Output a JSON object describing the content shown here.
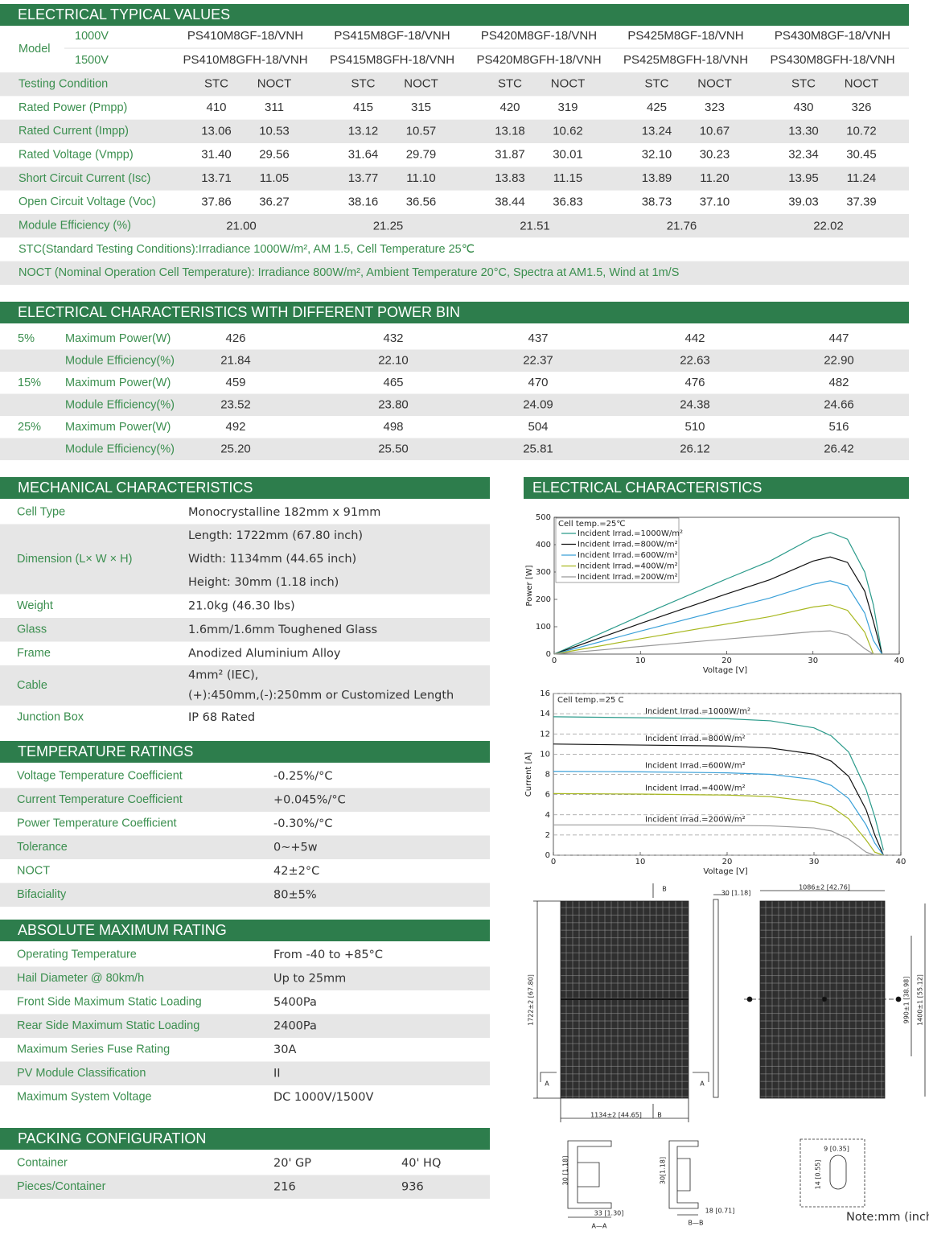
{
  "electrical_typical": {
    "title": "ELECTRICAL TYPICAL VALUES",
    "model_label": "Model",
    "voltages": [
      "1000V",
      "1500V"
    ],
    "models": [
      [
        "PS410M8GF-18/VNH",
        "PS415M8GF-18/VNH",
        "PS420M8GF-18/VNH",
        "PS425M8GF-18/VNH",
        "PS430M8GF-18/VNH"
      ],
      [
        "PS410M8GFH-18/VNH",
        "PS415M8GFH-18/VNH",
        "PS420M8GFH-18/VNH",
        "PS425M8GFH-18/VNH",
        "PS430M8GFH-18/VNH"
      ]
    ],
    "rows": [
      {
        "label": "Testing Condition",
        "values": [
          "STC",
          "NOCT",
          "STC",
          "NOCT",
          "STC",
          "NOCT",
          "STC",
          "NOCT",
          "STC",
          "NOCT"
        ]
      },
      {
        "label": "Rated Power (Pmpp)",
        "values": [
          "410",
          "311",
          "415",
          "315",
          "420",
          "319",
          "425",
          "323",
          "430",
          "326"
        ]
      },
      {
        "label": "Rated Current (Impp)",
        "values": [
          "13.06",
          "10.53",
          "13.12",
          "10.57",
          "13.18",
          "10.62",
          "13.24",
          "10.67",
          "13.30",
          "10.72"
        ]
      },
      {
        "label": "Rated Voltage (Vmpp)",
        "values": [
          "31.40",
          "29.56",
          "31.64",
          "29.79",
          "31.87",
          "30.01",
          "32.10",
          "30.23",
          "32.34",
          "30.45"
        ]
      },
      {
        "label": "Short Circuit Current (Isc)",
        "values": [
          "13.71",
          "11.05",
          "13.77",
          "11.10",
          "13.83",
          "11.15",
          "13.89",
          "11.20",
          "13.95",
          "11.24"
        ]
      },
      {
        "label": "Open Circuit Voltage (Voc)",
        "values": [
          "37.86",
          "36.27",
          "38.16",
          "36.56",
          "38.44",
          "36.83",
          "38.73",
          "37.10",
          "39.03",
          "37.39"
        ]
      }
    ],
    "efficiency": {
      "label": "Module Efficiency (%)",
      "values": [
        "21.00",
        "21.25",
        "21.51",
        "21.76",
        "22.02"
      ]
    },
    "notes": [
      "STC(Standard Testing Conditions):Irradiance 1000W/m², AM 1.5, Cell Temperature 25℃",
      "NOCT (Nominal Operation Cell Temperature): Irradiance 800W/m², Ambient Temperature 20°C, Spectra at AM1.5, Wind at 1m/S"
    ]
  },
  "power_bin": {
    "title": "ELECTRICAL CHARACTERISTICS WITH DIFFERENT POWER BIN",
    "groups": [
      {
        "bin": "5%",
        "rows": [
          {
            "label": "Maximum Power(W)",
            "values": [
              "426",
              "432",
              "437",
              "442",
              "447"
            ]
          },
          {
            "label": "Module Efficiency(%)",
            "values": [
              "21.84",
              "22.10",
              "22.37",
              "22.63",
              "22.90"
            ]
          }
        ]
      },
      {
        "bin": "15%",
        "rows": [
          {
            "label": "Maximum Power(W)",
            "values": [
              "459",
              "465",
              "470",
              "476",
              "482"
            ]
          },
          {
            "label": "Module Efficiency(%)",
            "values": [
              "23.52",
              "23.80",
              "24.09",
              "24.38",
              "24.66"
            ]
          }
        ]
      },
      {
        "bin": "25%",
        "rows": [
          {
            "label": "Maximum Power(W)",
            "values": [
              "492",
              "498",
              "504",
              "510",
              "516"
            ]
          },
          {
            "label": "Module Efficiency(%)",
            "values": [
              "25.20",
              "25.50",
              "25.81",
              "26.12",
              "26.42"
            ]
          }
        ]
      }
    ]
  },
  "mechanical": {
    "title": "MECHANICAL CHARACTERISTICS",
    "rows": [
      {
        "label": "Cell Type",
        "value": "Monocrystalline 182mm x 91mm"
      },
      {
        "label": "Dimension (L× W × H)",
        "value": [
          "Length: 1722mm (67.80 inch)",
          "Width: 1134mm (44.65 inch)",
          "Height: 30mm (1.18 inch)"
        ]
      },
      {
        "label": "Weight",
        "value": "21.0kg (46.30 lbs)"
      },
      {
        "label": "Glass",
        "value": "1.6mm/1.6mm Toughened Glass"
      },
      {
        "label": "Frame",
        "value": "Anodized Aluminium Alloy"
      },
      {
        "label": "Cable",
        "value": [
          "4mm² (IEC),",
          "(+):450mm,(-):250mm or Customized Length"
        ]
      },
      {
        "label": "Junction Box",
        "value": "IP 68 Rated"
      }
    ]
  },
  "temperature": {
    "title": "TEMPERATURE RATINGS",
    "rows": [
      {
        "label": "Voltage Temperature Coefficient",
        "value": "-0.25%/°C"
      },
      {
        "label": "Current Temperature Coefficient",
        "value": "+0.045%/°C"
      },
      {
        "label": "Power Temperature Coefficient",
        "value": "-0.30%/°C"
      },
      {
        "label": "Tolerance",
        "value": "0~+5w"
      },
      {
        "label": "NOCT",
        "value": "42±2°C"
      },
      {
        "label": "Bifaciality",
        "value": "80±5%"
      }
    ]
  },
  "absolute_max": {
    "title": "ABSOLUTE MAXIMUM RATING",
    "rows": [
      {
        "label": "Operating Temperature",
        "value": "From -40 to +85°C"
      },
      {
        "label": "Hail Diameter @ 80km/h",
        "value": "Up to 25mm"
      },
      {
        "label": "Front Side Maximum Static Loading",
        "value": "5400Pa"
      },
      {
        "label": "Rear Side Maximum Static Loading",
        "value": "2400Pa"
      },
      {
        "label": "Maximum Series Fuse Rating",
        "value": "30A"
      },
      {
        "label": "PV Module Classification",
        "value": "II"
      },
      {
        "label": "Maximum System Voltage",
        "value": "DC 1000V/1500V"
      }
    ]
  },
  "packing": {
    "title": "PACKING CONFIGURATION",
    "rows": [
      {
        "label": "Container",
        "values": [
          "20' GP",
          "40' HQ"
        ]
      },
      {
        "label": "Pieces/Container",
        "values": [
          "216",
          "936"
        ]
      }
    ]
  },
  "characteristics_title": "ELECTRICAL CHARACTERISTICS",
  "chart_data": [
    {
      "type": "line",
      "xlabel": "Voltage [V]",
      "ylabel": "Power [W]",
      "annotation": "Cell temp.=25℃",
      "x": [
        0,
        10,
        20,
        25,
        30,
        32,
        34,
        36,
        37,
        38
      ],
      "xlim": [
        0,
        40
      ],
      "xticks": [
        0,
        10,
        20,
        30,
        40
      ],
      "ylim": [
        0,
        500
      ],
      "yticks": [
        0,
        100,
        200,
        300,
        400,
        500
      ],
      "grid": false,
      "legend": "upper left",
      "series": [
        {
          "name": "Incident Irrad.=1000W/m²",
          "color": "#2a9a8a",
          "values": [
            0,
            140,
            275,
            340,
            425,
            445,
            420,
            300,
            180,
            0
          ]
        },
        {
          "name": "Incident Irrad.=800W/m²",
          "color": "#111111",
          "values": [
            0,
            112,
            220,
            272,
            340,
            355,
            335,
            230,
            120,
            0
          ]
        },
        {
          "name": "Incident Irrad.=600W/m²",
          "color": "#3aa0d8",
          "values": [
            0,
            84,
            165,
            205,
            255,
            268,
            250,
            150,
            50,
            0
          ]
        },
        {
          "name": "Incident Irrad.=400W/m²",
          "color": "#a8b820",
          "values": [
            0,
            56,
            110,
            137,
            172,
            180,
            160,
            80,
            0,
            0
          ]
        },
        {
          "name": "Incident Irrad.=200W/m²",
          "color": "#999999",
          "values": [
            0,
            28,
            55,
            68,
            82,
            85,
            70,
            20,
            0,
            0
          ]
        }
      ]
    },
    {
      "type": "line",
      "xlabel": "Voltage [V]",
      "ylabel": "Current [A]",
      "annotation": "Cell temp.=25 C",
      "x": [
        0,
        10,
        20,
        25,
        30,
        32,
        34,
        36,
        37,
        38
      ],
      "xlim": [
        0,
        40
      ],
      "xticks": [
        0,
        10,
        20,
        30,
        40
      ],
      "ylim": [
        0,
        16
      ],
      "yticks": [
        0,
        2,
        4,
        6,
        8,
        10,
        12,
        14,
        16
      ],
      "grid": true,
      "legend": "inline",
      "series": [
        {
          "name": "Incident Irrad.=1000W/m²",
          "color": "#2a9a8a",
          "values": [
            13.7,
            13.6,
            13.5,
            13.3,
            12.6,
            11.8,
            10.2,
            6.5,
            3.8,
            0.5
          ]
        },
        {
          "name": "Incident Irrad.=800W/m²",
          "color": "#111111",
          "values": [
            11,
            10.9,
            10.8,
            10.6,
            10,
            9.3,
            7.8,
            4.5,
            2,
            0
          ]
        },
        {
          "name": "Incident Irrad.=600W/m²",
          "color": "#3aa0d8",
          "values": [
            8.3,
            8.25,
            8.15,
            8,
            7.5,
            6.9,
            5.6,
            3,
            1.2,
            0
          ]
        },
        {
          "name": "Incident Irrad.=400W/m²",
          "color": "#a8b820",
          "values": [
            6.1,
            6.05,
            5.95,
            5.8,
            5.3,
            4.8,
            3.6,
            1.5,
            0.3,
            0
          ]
        },
        {
          "name": "Incident Irrad.=200W/m²",
          "color": "#999999",
          "values": [
            3,
            3,
            2.95,
            2.9,
            2.7,
            2.4,
            1.6,
            0.3,
            0,
            0
          ]
        }
      ]
    }
  ],
  "drawing": {
    "labels": [
      "B",
      "30 [1.18]",
      "1086±2 [42.76]",
      "1722±2 [67.80]",
      "A",
      "A",
      "1134±2 [44.65]",
      "B",
      "990±1 [38.98]",
      "1400±1 [55.12]",
      "30 [1.18]",
      "33 [1.30]",
      "A—A",
      "30[1.18]",
      "18 [0.71]",
      "B—B",
      "9 [0.35]",
      "14 [0.55]",
      "Note:mm (inch)"
    ]
  }
}
